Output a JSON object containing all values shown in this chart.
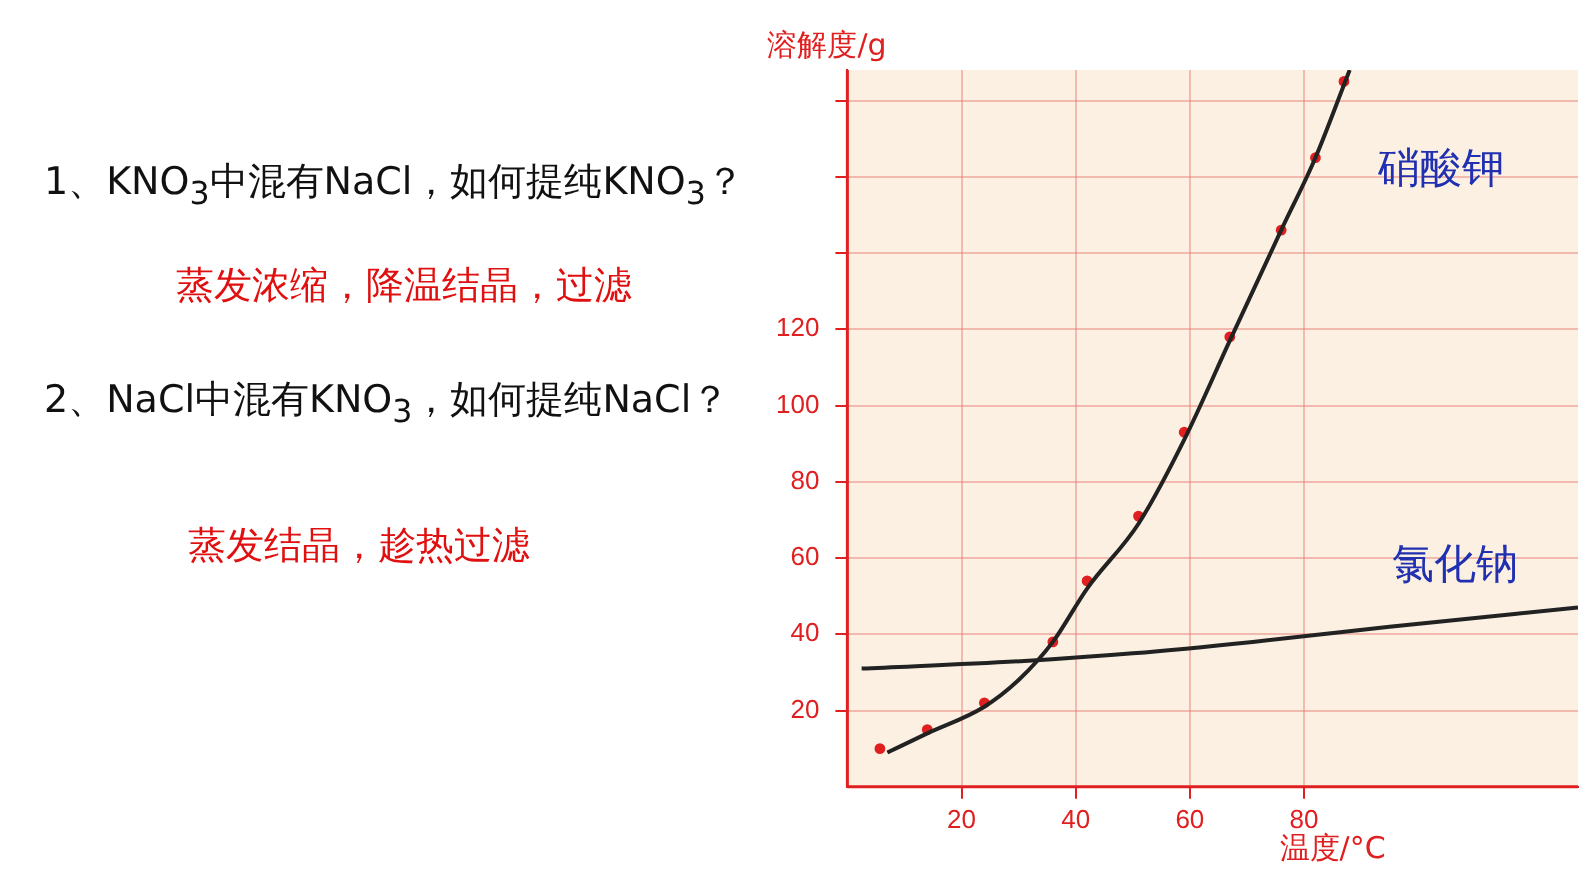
{
  "chart_data": {
    "type": "line",
    "xlabel": "温度/°C",
    "ylabel": "溶解度/g",
    "annotations": [
      "1、KNO$_{3}$中混有NaCl，如何提纯KNO$_{3}$？",
      "蒸发浓缩，降温结晶，过滤",
      "2、NaCl中混有KNO$_{3}$，如何提纯NaCl？",
      "蒸发结晶，趁热过滤"
    ],
    "xlim": [
      0,
      128
    ],
    "xticks": [
      20,
      40,
      60,
      80
    ],
    "ylim": [
      0,
      188
    ],
    "yticks": [
      20,
      40,
      60,
      80,
      100,
      120,
      {
        "value": 140,
        "label": null
      },
      {
        "value": 160,
        "label": null
      },
      {
        "value": 180,
        "label": null
      }
    ],
    "grid": true,
    "legend": false,
    "series": [
      {
        "name": "硝酸钾",
        "color": "#222222",
        "x": [
          7,
          14,
          24,
          30,
          36,
          42,
          51,
          59,
          67,
          76,
          82,
          88
        ],
        "values": [
          9,
          14,
          21,
          28,
          38,
          52,
          69,
          91,
          117,
          146,
          165,
          188
        ]
      },
      {
        "type": "scatter",
        "marker": "circle",
        "color": "#e02020",
        "x": [
          5.7,
          14,
          24,
          36,
          42,
          51,
          59,
          67,
          76,
          82,
          87
        ],
        "values": [
          10,
          15,
          22,
          38,
          54,
          71,
          93,
          118,
          146,
          165,
          185
        ]
      },
      {
        "name": "氯化钠",
        "color": "#222222",
        "x": [
          2.5,
          31,
          50,
          71,
          95,
          128
        ],
        "values": [
          31,
          33,
          35,
          38,
          42,
          47
        ]
      }
    ]
  }
}
